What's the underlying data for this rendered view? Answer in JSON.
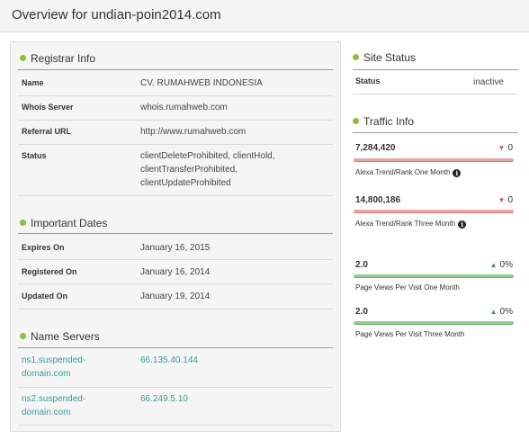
{
  "header": {
    "title": "Overview for undian-poin2014.com"
  },
  "registrar": {
    "title": "Registrar Info",
    "rows": [
      {
        "label": "Name",
        "value": "CV. RUMAHWEB INDONESIA"
      },
      {
        "label": "Whois Server",
        "value": "whois.rumahweb.com"
      },
      {
        "label": "Referral URL",
        "value": "http://www.rumahweb.com"
      },
      {
        "label": "Status",
        "value_lines": [
          "clientDeleteProhibited, clientHold,",
          "clientTransferProhibited,",
          "clientUpdateProhibited"
        ]
      }
    ]
  },
  "dates": {
    "title": "Important Dates",
    "rows": [
      {
        "label": "Expires On",
        "value": "January 16, 2015"
      },
      {
        "label": "Registered On",
        "value": "January 16, 2014"
      },
      {
        "label": "Updated On",
        "value": "January 19, 2014"
      }
    ]
  },
  "nameservers": {
    "title": "Name Servers",
    "rows": [
      {
        "name_lines": [
          "ns1.suspended-",
          "domain.com"
        ],
        "ip": "66.135.40.144"
      },
      {
        "name_lines": [
          "ns2.suspended-",
          "domain.com"
        ],
        "ip": "66.249.5.10"
      }
    ]
  },
  "site_status": {
    "title": "Site Status",
    "label": "Status",
    "value": "inactive"
  },
  "traffic": {
    "title": "Traffic Info",
    "metrics": [
      {
        "value": "7,284,420",
        "change": "0",
        "direction": "down",
        "label": "Alexa Trend/Rank One Month",
        "info": "i"
      },
      {
        "value": "14,800,186",
        "change": "0",
        "direction": "down",
        "label": "Alexa Trend/Rank Three Month",
        "info": "i"
      },
      {
        "value": "2.0",
        "change": "0%",
        "direction": "up",
        "label": "Page Views Per Visit One Month"
      },
      {
        "value": "2.0",
        "change": "0%",
        "direction": "up",
        "label": "Page Views Per Visit Three Month"
      }
    ],
    "arrows": {
      "up": "▲",
      "down": "▼"
    }
  },
  "colors": {
    "accent_bullet": "#8cbf3f",
    "link": "#3a9b96",
    "bar_red": "#e9a6a6",
    "bar_green": "#8fcf8f"
  }
}
